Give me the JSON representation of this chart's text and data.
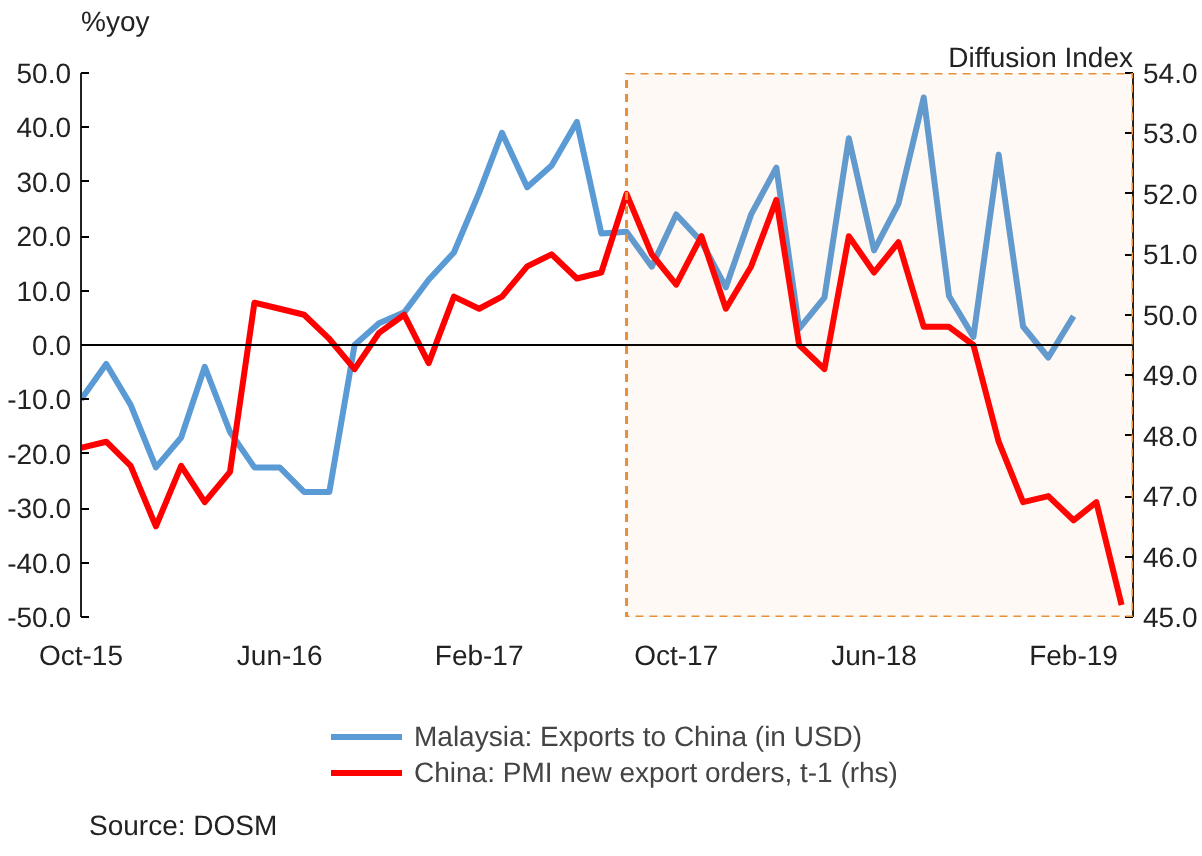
{
  "chart_data": {
    "type": "line",
    "ylabel": "%yoy",
    "y2label": "Diffusion Index",
    "xlim": [
      "2015-10",
      "2019-04-15"
    ],
    "xticks": [
      {
        "value": "2015-10",
        "label": "Oct-15"
      },
      {
        "value": "2016-06",
        "label": "Jun-16"
      },
      {
        "value": "2017-02",
        "label": "Feb-17"
      },
      {
        "value": "2017-10",
        "label": "Oct-17"
      },
      {
        "value": "2018-06",
        "label": "Jun-18"
      },
      {
        "value": "2019-02",
        "label": "Feb-19"
      }
    ],
    "ylim": [
      -50,
      50
    ],
    "yticks": [
      {
        "value": -50,
        "label": "-50.0"
      },
      {
        "value": -40,
        "label": "-40.0"
      },
      {
        "value": -30,
        "label": "-30.0"
      },
      {
        "value": -20,
        "label": "-20.0"
      },
      {
        "value": -10,
        "label": "-10.0"
      },
      {
        "value": 0,
        "label": "0.0"
      },
      {
        "value": 10,
        "label": "10.0"
      },
      {
        "value": 20,
        "label": "20.0"
      },
      {
        "value": 30,
        "label": "30.0"
      },
      {
        "value": 40,
        "label": "40.0"
      },
      {
        "value": 50,
        "label": "50.0"
      }
    ],
    "y2lim": [
      45,
      54
    ],
    "y2ticks": [
      {
        "value": 45,
        "label": "45.0"
      },
      {
        "value": 46,
        "label": "46.0"
      },
      {
        "value": 47,
        "label": "47.0"
      },
      {
        "value": 48,
        "label": "48.0"
      },
      {
        "value": 49,
        "label": "49.0"
      },
      {
        "value": 50,
        "label": "50.0"
      },
      {
        "value": 51,
        "label": "51.0"
      },
      {
        "value": 52,
        "label": "52.0"
      },
      {
        "value": 53,
        "label": "53.0"
      },
      {
        "value": 54,
        "label": "54.0"
      }
    ],
    "series": [
      {
        "name": "Malaysia: Exports to China (in USD)",
        "color": "#5b9bd5",
        "x": [
          "2015-10",
          "2015-11",
          "2015-12",
          "2016-01",
          "2016-02",
          "2016-03",
          "2016-04",
          "2016-05",
          "2016-06",
          "2016-07",
          "2016-08",
          "2016-09",
          "2016-10",
          "2016-11",
          "2016-12",
          "2017-01",
          "2017-02",
          "2017-03",
          "2017-04",
          "2017-05",
          "2017-06",
          "2017-07",
          "2017-08",
          "2017-09",
          "2017-10",
          "2017-11",
          "2017-12",
          "2018-01",
          "2018-02",
          "2018-03",
          "2018-04",
          "2018-05",
          "2018-06",
          "2018-07",
          "2018-08",
          "2018-09",
          "2018-10",
          "2018-11",
          "2018-12",
          "2019-01",
          "2019-02"
        ],
        "values": [
          -10,
          -3.5,
          -11,
          -22.5,
          -17,
          -4,
          -16,
          -22.5,
          -22.5,
          -27,
          -27,
          0,
          4,
          6,
          12,
          17,
          28,
          39,
          29,
          33,
          41,
          20.5,
          20.8,
          14.4,
          24,
          19,
          10.6,
          24,
          32.6,
          3,
          8.7,
          38,
          17.4,
          26,
          45.5,
          9,
          1.5,
          35,
          3.4,
          -2.3,
          5.3
        ]
      },
      {
        "name": "China: PMI new export orders, t-1 (rhs)",
        "color": "#ff0000",
        "axis": "y2",
        "x": [
          "2015-10",
          "2015-11",
          "2015-12",
          "2016-01",
          "2016-02",
          "2016-03",
          "2016-04",
          "2016-05",
          "2016-06",
          "2016-07",
          "2016-08",
          "2016-09",
          "2016-10",
          "2016-11",
          "2016-12",
          "2017-01",
          "2017-02",
          "2017-03",
          "2017-04",
          "2017-05",
          "2017-06",
          "2017-07",
          "2017-08",
          "2017-09",
          "2017-10",
          "2017-11",
          "2017-12",
          "2018-01",
          "2018-02",
          "2018-03",
          "2018-04",
          "2018-05",
          "2018-06",
          "2018-07",
          "2018-08",
          "2018-09",
          "2018-10",
          "2018-11",
          "2018-12",
          "2019-01",
          "2019-02",
          "2019-03",
          "2019-04"
        ],
        "values": [
          47.8,
          47.9,
          47.5,
          46.5,
          47.5,
          46.9,
          47.4,
          50.2,
          50.1,
          50.0,
          49.6,
          49.1,
          49.7,
          50.0,
          49.2,
          50.3,
          50.1,
          50.3,
          50.8,
          51.0,
          50.6,
          50.7,
          52.0,
          51.0,
          50.5,
          51.3,
          50.1,
          50.8,
          51.9,
          49.5,
          49.1,
          51.3,
          50.7,
          51.2,
          49.8,
          49.8,
          49.5,
          47.9,
          46.9,
          47.0,
          46.6,
          46.9,
          45.2
        ]
      }
    ],
    "ref_lines": [
      {
        "axis": "y",
        "value": 0,
        "color": "#000000"
      }
    ],
    "bands": [
      {
        "axis": "x",
        "from": "2017-08",
        "to": "2019-04-15",
        "color": "#e69138"
      }
    ],
    "grid": false,
    "legend": "bottom",
    "annotations": [
      "Source: DOSM"
    ]
  }
}
